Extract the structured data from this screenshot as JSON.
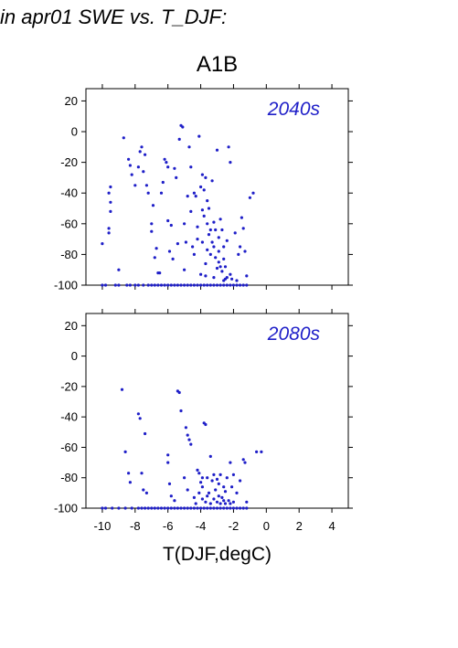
{
  "figure_title": "in apr01 SWE vs. T_DJF:",
  "scenario": "A1B",
  "x_label": "T(DJF,degC)",
  "colors": {
    "points": "#1f1fc8",
    "panel_label": "#1f1fc8",
    "axes": "#000000"
  },
  "chart_data": [
    {
      "type": "scatter",
      "panel_label": "2040s",
      "xlim": [
        -11,
        5
      ],
      "ylim": [
        -100,
        28
      ],
      "x_ticks": [
        -10,
        -8,
        -6,
        -4,
        -2,
        0,
        2,
        4
      ],
      "y_ticks": [
        20,
        0,
        -20,
        -40,
        -60,
        -80,
        -100
      ],
      "y_tick_labels": [
        "20",
        "0",
        "-20",
        "-40",
        "-60",
        "-80",
        "-100"
      ],
      "points": [
        [
          -10.0,
          -100
        ],
        [
          -9.8,
          -100
        ],
        [
          -9.2,
          -100
        ],
        [
          -9.0,
          -100
        ],
        [
          -8.5,
          -100
        ],
        [
          -8.3,
          -100
        ],
        [
          -8.0,
          -100
        ],
        [
          -7.8,
          -100
        ],
        [
          -7.5,
          -100
        ],
        [
          -7.2,
          -100
        ],
        [
          -7.0,
          -100
        ],
        [
          -6.8,
          -100
        ],
        [
          -6.6,
          -100
        ],
        [
          -6.4,
          -100
        ],
        [
          -6.2,
          -100
        ],
        [
          -6.0,
          -100
        ],
        [
          -5.8,
          -100
        ],
        [
          -5.6,
          -100
        ],
        [
          -5.4,
          -100
        ],
        [
          -5.2,
          -100
        ],
        [
          -5.0,
          -100
        ],
        [
          -4.8,
          -100
        ],
        [
          -4.6,
          -100
        ],
        [
          -4.4,
          -100
        ],
        [
          -4.2,
          -100
        ],
        [
          -4.0,
          -100
        ],
        [
          -3.8,
          -100
        ],
        [
          -3.6,
          -100
        ],
        [
          -3.4,
          -100
        ],
        [
          -3.2,
          -100
        ],
        [
          -3.0,
          -100
        ],
        [
          -2.8,
          -100
        ],
        [
          -2.6,
          -100
        ],
        [
          -2.4,
          -100
        ],
        [
          -2.2,
          -100
        ],
        [
          -2.0,
          -100
        ],
        [
          -1.8,
          -100
        ],
        [
          -1.6,
          -100
        ],
        [
          -1.4,
          -100
        ],
        [
          -1.2,
          -100
        ],
        [
          -10.0,
          -73
        ],
        [
          -9.6,
          -63
        ],
        [
          -9.6,
          -66
        ],
        [
          -9.5,
          -52
        ],
        [
          -9.5,
          -46
        ],
        [
          -9.6,
          -40
        ],
        [
          -9.5,
          -36
        ],
        [
          -9.0,
          -90
        ],
        [
          -8.7,
          -4
        ],
        [
          -8.4,
          -18
        ],
        [
          -8.3,
          -22
        ],
        [
          -8.2,
          -28
        ],
        [
          -8.0,
          -35
        ],
        [
          -7.8,
          -23
        ],
        [
          -7.7,
          -13
        ],
        [
          -7.6,
          -10
        ],
        [
          -7.5,
          -26
        ],
        [
          -7.4,
          -15
        ],
        [
          -7.3,
          -35
        ],
        [
          -7.2,
          -40
        ],
        [
          -7.0,
          -60
        ],
        [
          -7.0,
          -65
        ],
        [
          -6.9,
          -48
        ],
        [
          -6.8,
          -82
        ],
        [
          -6.7,
          -76
        ],
        [
          -6.6,
          -92
        ],
        [
          -6.5,
          -92
        ],
        [
          -6.4,
          -40
        ],
        [
          -6.3,
          -33
        ],
        [
          -6.2,
          -18
        ],
        [
          -6.1,
          -20
        ],
        [
          -6.0,
          -58
        ],
        [
          -6.0,
          -23
        ],
        [
          -5.9,
          -78
        ],
        [
          -5.8,
          -61
        ],
        [
          -5.7,
          -83
        ],
        [
          -5.6,
          -24
        ],
        [
          -5.5,
          -30
        ],
        [
          -5.4,
          -73
        ],
        [
          -5.3,
          -5
        ],
        [
          -5.2,
          4
        ],
        [
          -5.1,
          3
        ],
        [
          -5.0,
          -60
        ],
        [
          -5.0,
          -90
        ],
        [
          -4.9,
          -72
        ],
        [
          -4.8,
          -42
        ],
        [
          -4.7,
          -10
        ],
        [
          -4.6,
          -23
        ],
        [
          -4.5,
          -75
        ],
        [
          -4.4,
          -40
        ],
        [
          -4.3,
          -42
        ],
        [
          -4.2,
          -62
        ],
        [
          -4.1,
          -3
        ],
        [
          -4.0,
          -36
        ],
        [
          -3.9,
          -51
        ],
        [
          -3.8,
          -55
        ],
        [
          -3.7,
          -86
        ],
        [
          -3.6,
          -45
        ],
        [
          -3.5,
          -67
        ],
        [
          -3.4,
          -80
        ],
        [
          -3.3,
          -72
        ],
        [
          -3.2,
          -75
        ],
        [
          -3.1,
          -64
        ],
        [
          -3.0,
          -89
        ],
        [
          -2.9,
          -78
        ],
        [
          -2.8,
          -57
        ],
        [
          -2.7,
          -91
        ],
        [
          -2.6,
          -83
        ],
        [
          -2.5,
          -96
        ],
        [
          -2.4,
          -71
        ],
        [
          -3.8,
          -38
        ],
        [
          -3.7,
          -30
        ],
        [
          -3.6,
          -60
        ],
        [
          -3.5,
          -50
        ],
        [
          -3.3,
          -32
        ],
        [
          -3.2,
          -95
        ],
        [
          -3.0,
          -12
        ],
        [
          -2.9,
          -85
        ],
        [
          -2.6,
          -75
        ],
        [
          -2.5,
          -88
        ],
        [
          -2.4,
          -95
        ],
        [
          -2.3,
          -10
        ],
        [
          -2.2,
          -20
        ],
        [
          -2.2,
          -93
        ],
        [
          -2.1,
          -96
        ],
        [
          -1.9,
          -66
        ],
        [
          -1.8,
          -97
        ],
        [
          -1.7,
          -80
        ],
        [
          -1.6,
          -75
        ],
        [
          -1.5,
          -56
        ],
        [
          -1.4,
          -63
        ],
        [
          -1.3,
          -78
        ],
        [
          -1.2,
          -94
        ],
        [
          -1.0,
          -43
        ],
        [
          -0.8,
          -40
        ],
        [
          -4.6,
          -52
        ],
        [
          -4.4,
          -80
        ],
        [
          -4.2,
          -70
        ],
        [
          -4.0,
          -93
        ],
        [
          -3.9,
          -28
        ],
        [
          -3.9,
          -72
        ],
        [
          -3.7,
          -94
        ],
        [
          -3.6,
          -77
        ],
        [
          -3.4,
          -64
        ],
        [
          -3.2,
          -59
        ],
        [
          -3.1,
          -82
        ],
        [
          -2.9,
          -69
        ],
        [
          -2.8,
          -88
        ],
        [
          -2.7,
          -64
        ],
        [
          -2.6,
          -97
        ]
      ]
    },
    {
      "type": "scatter",
      "panel_label": "2080s",
      "xlim": [
        -11,
        5
      ],
      "ylim": [
        -100,
        28
      ],
      "x_ticks": [
        -10,
        -8,
        -6,
        -4,
        -2,
        0,
        2,
        4
      ],
      "x_tick_labels": [
        "-10",
        "-8",
        "-6",
        "-4",
        "-2",
        "0",
        "2",
        "4"
      ],
      "y_ticks": [
        20,
        0,
        -20,
        -40,
        -60,
        -80,
        -100
      ],
      "y_tick_labels": [
        "20",
        "0",
        "-20",
        "-40",
        "-60",
        "-80",
        "-100"
      ],
      "points": [
        [
          -10.0,
          -100
        ],
        [
          -9.8,
          -100
        ],
        [
          -9.4,
          -100
        ],
        [
          -9.0,
          -100
        ],
        [
          -8.6,
          -100
        ],
        [
          -8.2,
          -100
        ],
        [
          -7.8,
          -100
        ],
        [
          -7.6,
          -100
        ],
        [
          -7.4,
          -100
        ],
        [
          -7.2,
          -100
        ],
        [
          -7.0,
          -100
        ],
        [
          -6.8,
          -100
        ],
        [
          -6.6,
          -100
        ],
        [
          -6.4,
          -100
        ],
        [
          -6.2,
          -100
        ],
        [
          -6.0,
          -100
        ],
        [
          -5.8,
          -100
        ],
        [
          -5.6,
          -100
        ],
        [
          -5.4,
          -100
        ],
        [
          -5.2,
          -100
        ],
        [
          -5.0,
          -100
        ],
        [
          -4.8,
          -100
        ],
        [
          -4.6,
          -100
        ],
        [
          -4.4,
          -100
        ],
        [
          -4.2,
          -100
        ],
        [
          -4.0,
          -100
        ],
        [
          -3.8,
          -100
        ],
        [
          -3.6,
          -100
        ],
        [
          -3.4,
          -100
        ],
        [
          -3.2,
          -100
        ],
        [
          -3.0,
          -100
        ],
        [
          -2.8,
          -100
        ],
        [
          -2.6,
          -100
        ],
        [
          -2.4,
          -100
        ],
        [
          -2.2,
          -100
        ],
        [
          -2.0,
          -100
        ],
        [
          -1.8,
          -100
        ],
        [
          -1.6,
          -100
        ],
        [
          -1.4,
          -100
        ],
        [
          -1.2,
          -100
        ],
        [
          -8.8,
          -22
        ],
        [
          -8.6,
          -63
        ],
        [
          -8.4,
          -77
        ],
        [
          -8.3,
          -83
        ],
        [
          -7.8,
          -38
        ],
        [
          -7.7,
          -41
        ],
        [
          -7.6,
          -77
        ],
        [
          -7.5,
          -88
        ],
        [
          -7.4,
          -51
        ],
        [
          -7.3,
          -90
        ],
        [
          -5.4,
          -23
        ],
        [
          -5.3,
          -24
        ],
        [
          -5.2,
          -36
        ],
        [
          -4.9,
          -47
        ],
        [
          -4.8,
          -52
        ],
        [
          -4.7,
          -55
        ],
        [
          -4.6,
          -58
        ],
        [
          -6.0,
          -65
        ],
        [
          -6.0,
          -70
        ],
        [
          -5.9,
          -84
        ],
        [
          -5.8,
          -92
        ],
        [
          -5.6,
          -95
        ],
        [
          -5.0,
          -80
        ],
        [
          -4.8,
          -88
        ],
        [
          -4.4,
          -93
        ],
        [
          -4.2,
          -75
        ],
        [
          -4.1,
          -77
        ],
        [
          -4.0,
          -83
        ],
        [
          -3.9,
          -86
        ],
        [
          -3.8,
          -44
        ],
        [
          -3.7,
          -45
        ],
        [
          -3.6,
          -80
        ],
        [
          -3.5,
          -90
        ],
        [
          -3.4,
          -66
        ],
        [
          -3.3,
          -82
        ],
        [
          -3.2,
          -78
        ],
        [
          -3.1,
          -88
        ],
        [
          -3.0,
          -81
        ],
        [
          -2.9,
          -84
        ],
        [
          -2.8,
          -78
        ],
        [
          -2.7,
          -93
        ],
        [
          -2.6,
          -86
        ],
        [
          -2.5,
          -89
        ],
        [
          -2.4,
          -80
        ],
        [
          -2.3,
          -95
        ],
        [
          -2.2,
          -70
        ],
        [
          -2.1,
          -86
        ],
        [
          -2.0,
          -78
        ],
        [
          -1.8,
          -90
        ],
        [
          -1.6,
          -82
        ],
        [
          -1.4,
          -68
        ],
        [
          -1.3,
          -70
        ],
        [
          -1.2,
          -96
        ],
        [
          -0.6,
          -63
        ],
        [
          -0.3,
          -63
        ],
        [
          -3.9,
          -94
        ],
        [
          -3.7,
          -96
        ],
        [
          -3.6,
          -92
        ],
        [
          -3.4,
          -97
        ],
        [
          -3.2,
          -94
        ],
        [
          -3.0,
          -96
        ],
        [
          -2.9,
          -92
        ],
        [
          -2.8,
          -97
        ],
        [
          -2.6,
          -95
        ],
        [
          -2.5,
          -97
        ],
        [
          -2.2,
          -97
        ],
        [
          -2.0,
          -96
        ],
        [
          -4.3,
          -97
        ],
        [
          -4.1,
          -90
        ],
        [
          -3.9,
          -80
        ]
      ]
    }
  ]
}
